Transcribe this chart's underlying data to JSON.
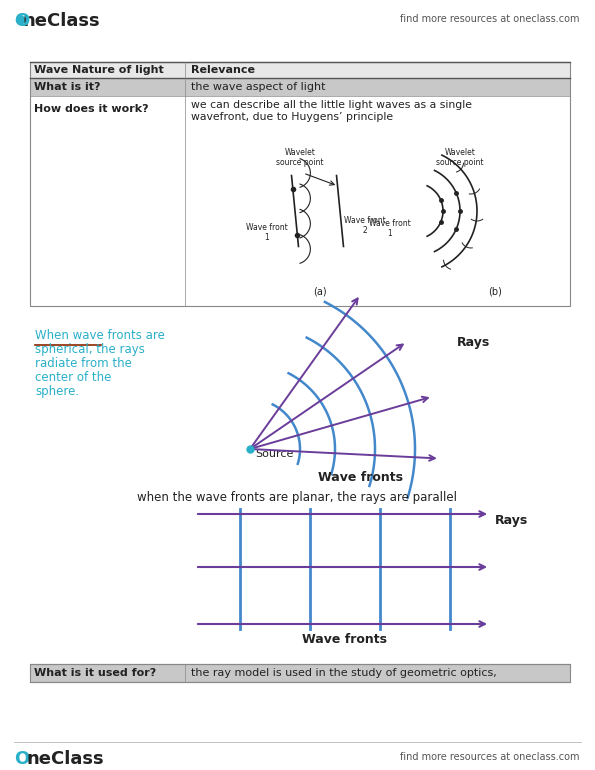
{
  "bg_color": "#ffffff",
  "header_right_text": "find more resources at oneclass.com",
  "footer_right_text": "find more resources at oneclass.com",
  "table_col1_header": "Wave Nature of light",
  "table_col2_header": "Relevance",
  "table_row1_col1": "What is it?",
  "table_row1_col2": "the wave aspect of light",
  "table_row2_col1": "How does it work?",
  "table_row2_col2": "we can describe all the little light waves as a single\nwavefront, due to Huygens’ principle",
  "table_row3_col1": "What is it used for?",
  "table_row3_col2": "the ray model is used in the study of geometric optics,",
  "spherical_text_line1": "When wave fronts are",
  "spherical_text_line2": "spherical, the rays",
  "spherical_text_line3": "radiate from the",
  "spherical_text_line4": "center of the",
  "spherical_text_line5": "sphere.",
  "source_label": "Source",
  "wavefronts_label": "Wave fronts",
  "rays_label1": "Rays",
  "planar_text": "when the wave fronts are planar, the rays are parallel",
  "wavefronts_label2": "Wave fronts",
  "rays_label2": "Rays",
  "teal_color": "#2ab0c8",
  "purple_color": "#6a3d9a",
  "blue_wave_color": "#4488cc",
  "dark_color": "#222222"
}
